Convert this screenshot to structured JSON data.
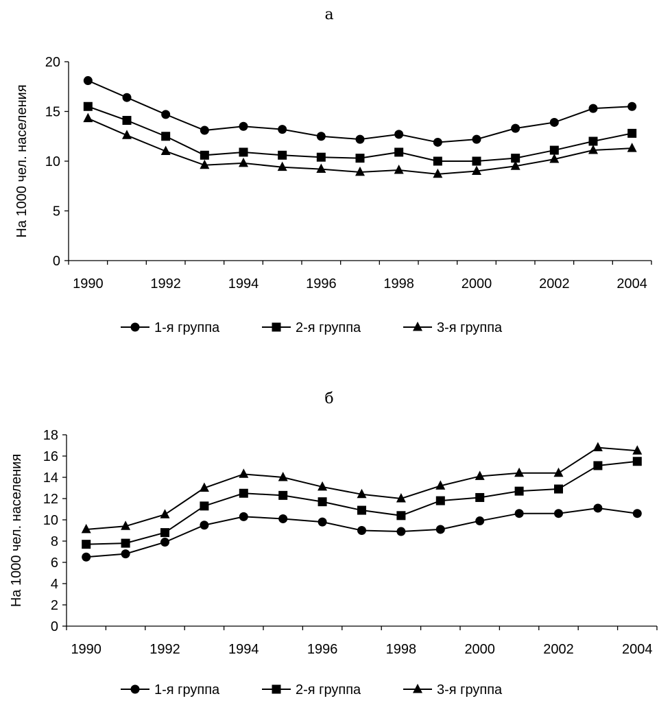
{
  "chart_data": [
    {
      "panel_label": "а",
      "type": "line",
      "ylabel": "На 1000 чел. населения",
      "ylim": [
        0,
        20
      ],
      "yticks": [
        0,
        5,
        10,
        15,
        20
      ],
      "x": [
        1990,
        1991,
        1992,
        1993,
        1994,
        1995,
        1996,
        1997,
        1998,
        1999,
        2000,
        2001,
        2002,
        2003,
        2004
      ],
      "xtick_labels": [
        "1990",
        "1992",
        "1994",
        "1996",
        "1998",
        "2000",
        "2002",
        "2004"
      ],
      "series": [
        {
          "name": "1-я группа",
          "marker": "circle",
          "values": [
            18.1,
            16.4,
            14.7,
            13.1,
            13.5,
            13.2,
            12.5,
            12.2,
            12.7,
            11.9,
            12.2,
            13.3,
            13.9,
            15.3,
            15.5
          ]
        },
        {
          "name": "2-я группа",
          "marker": "square",
          "values": [
            15.5,
            14.1,
            12.5,
            10.6,
            10.9,
            10.6,
            10.4,
            10.3,
            10.9,
            10.0,
            10.0,
            10.3,
            11.1,
            12.0,
            12.8
          ]
        },
        {
          "name": "3-я группа",
          "marker": "triangle",
          "values": [
            14.3,
            12.6,
            11.0,
            9.6,
            9.8,
            9.4,
            9.2,
            8.9,
            9.1,
            8.7,
            9.0,
            9.5,
            10.2,
            11.1,
            11.3
          ]
        }
      ],
      "grid": false,
      "legend_position": "bottom"
    },
    {
      "panel_label": "б",
      "type": "line",
      "ylabel": "На 1000 чел. населения",
      "ylim": [
        0,
        18
      ],
      "yticks": [
        0,
        2,
        4,
        6,
        8,
        10,
        12,
        14,
        16,
        18
      ],
      "x": [
        1990,
        1991,
        1992,
        1993,
        1994,
        1995,
        1996,
        1997,
        1998,
        1999,
        2000,
        2001,
        2002,
        2003,
        2004
      ],
      "xtick_labels": [
        "1990",
        "1992",
        "1994",
        "1996",
        "1998",
        "2000",
        "2002",
        "2004"
      ],
      "series": [
        {
          "name": "1-я группа",
          "marker": "circle",
          "values": [
            6.5,
            6.8,
            7.9,
            9.5,
            10.3,
            10.1,
            9.8,
            9.0,
            8.9,
            9.1,
            9.9,
            10.6,
            10.6,
            11.1,
            10.6
          ]
        },
        {
          "name": "2-я группа",
          "marker": "square",
          "values": [
            7.7,
            7.8,
            8.8,
            11.3,
            12.5,
            12.3,
            11.7,
            10.9,
            10.4,
            11.8,
            12.1,
            12.7,
            12.9,
            15.1,
            15.5
          ]
        },
        {
          "name": "3-я группа",
          "marker": "triangle",
          "values": [
            9.1,
            9.4,
            10.5,
            13.0,
            14.3,
            14.0,
            13.1,
            12.4,
            12.0,
            13.2,
            14.1,
            14.4,
            14.4,
            16.8,
            16.5
          ]
        }
      ],
      "grid": false,
      "legend_position": "bottom"
    }
  ]
}
